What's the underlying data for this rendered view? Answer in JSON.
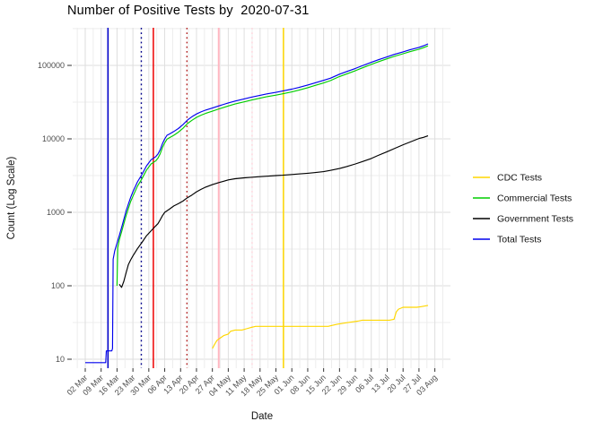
{
  "title": "Number of Positive Tests by  2020-07-31",
  "axes": {
    "x_label": "Date",
    "y_label": "Count (Log Scale)",
    "x_ticks": [
      "02 Mar",
      "09 Mar",
      "16 Mar",
      "23 Mar",
      "30 Mar",
      "06 Apr",
      "13 Apr",
      "20 Apr",
      "27 Apr",
      "04 May",
      "11 May",
      "18 May",
      "25 May",
      "01 Jun",
      "08 Jun",
      "15 Jun",
      "22 Jun",
      "29 Jun",
      "06 Jul",
      "13 Jul",
      "20 Jul",
      "27 Jul",
      "03 Aug"
    ],
    "y_ticks": [
      "10",
      "100",
      "1000",
      "10000",
      "100000"
    ]
  },
  "legend": {
    "items": [
      {
        "label": "CDC Tests",
        "color": "#FFD700"
      },
      {
        "label": "Commercial Tests",
        "color": "#00CD00"
      },
      {
        "label": "Government Tests",
        "color": "#000000"
      },
      {
        "label": "Total Tests",
        "color": "#0000EE"
      }
    ]
  },
  "chart_data": {
    "type": "line",
    "title": "Number of Positive Tests by  2020-07-31",
    "xlabel": "Date",
    "ylabel": "Count (Log Scale)",
    "y_scale": "log10",
    "ylim": [
      8,
      320000
    ],
    "grid": true,
    "legend_position": "right",
    "x_day0_date": "2020-03-02",
    "x_tick_days": [
      0,
      7,
      14,
      21,
      28,
      35,
      42,
      49,
      56,
      63,
      70,
      77,
      84,
      91,
      98,
      105,
      112,
      119,
      126,
      133,
      140,
      147,
      154
    ],
    "y_tick_values": [
      10,
      100,
      1000,
      10000,
      100000
    ],
    "series": [
      {
        "name": "Total Tests",
        "color": "#0000EE",
        "points": [
          [
            0,
            9
          ],
          [
            9,
            9
          ],
          [
            9.3,
            13
          ],
          [
            11.7,
            13
          ],
          [
            12,
            14
          ],
          [
            12.3,
            230
          ],
          [
            13,
            300
          ],
          [
            14,
            380
          ],
          [
            15,
            480
          ],
          [
            16,
            620
          ],
          [
            17,
            800
          ],
          [
            18,
            1040
          ],
          [
            19,
            1300
          ],
          [
            20,
            1600
          ],
          [
            21,
            1900
          ],
          [
            23,
            2600
          ],
          [
            25,
            3300
          ],
          [
            27,
            4300
          ],
          [
            29,
            5200
          ],
          [
            31,
            5700
          ],
          [
            32,
            6200
          ],
          [
            33,
            7100
          ],
          [
            34,
            8600
          ],
          [
            35,
            10000
          ],
          [
            36,
            11200
          ],
          [
            37,
            11600
          ],
          [
            39,
            12600
          ],
          [
            41,
            13800
          ],
          [
            43,
            15600
          ],
          [
            45,
            18000
          ],
          [
            47,
            20000
          ],
          [
            49,
            21800
          ],
          [
            51,
            23300
          ],
          [
            53,
            24600
          ],
          [
            56,
            26300
          ],
          [
            59,
            28200
          ],
          [
            61,
            29500
          ],
          [
            63,
            30800
          ],
          [
            66,
            32700
          ],
          [
            70,
            35000
          ],
          [
            73,
            36800
          ],
          [
            77,
            39200
          ],
          [
            80,
            41000
          ],
          [
            84,
            43000
          ],
          [
            87,
            44800
          ],
          [
            91,
            47500
          ],
          [
            94,
            50000
          ],
          [
            98,
            54000
          ],
          [
            101,
            57500
          ],
          [
            105,
            62500
          ],
          [
            108,
            67000
          ],
          [
            112,
            76000
          ],
          [
            115,
            82000
          ],
          [
            119,
            91000
          ],
          [
            122,
            99000
          ],
          [
            126,
            110000
          ],
          [
            129,
            119000
          ],
          [
            133,
            131000
          ],
          [
            136,
            141000
          ],
          [
            140,
            153000
          ],
          [
            143,
            163000
          ],
          [
            147,
            176000
          ],
          [
            149,
            185000
          ],
          [
            151,
            196000
          ]
        ]
      },
      {
        "name": "Commercial Tests",
        "color": "#00CD00",
        "points": [
          [
            14,
            100
          ],
          [
            14.3,
            330
          ],
          [
            15,
            420
          ],
          [
            16,
            540
          ],
          [
            17,
            700
          ],
          [
            18,
            900
          ],
          [
            19,
            1130
          ],
          [
            20,
            1400
          ],
          [
            21,
            1650
          ],
          [
            23,
            2270
          ],
          [
            25,
            2880
          ],
          [
            27,
            3760
          ],
          [
            29,
            4550
          ],
          [
            31,
            5000
          ],
          [
            32,
            5450
          ],
          [
            33,
            6250
          ],
          [
            34,
            7600
          ],
          [
            35,
            8850
          ],
          [
            36,
            9900
          ],
          [
            37,
            10300
          ],
          [
            39,
            11200
          ],
          [
            41,
            12300
          ],
          [
            43,
            13900
          ],
          [
            45,
            16100
          ],
          [
            47,
            17900
          ],
          [
            49,
            19600
          ],
          [
            51,
            21000
          ],
          [
            53,
            22200
          ],
          [
            56,
            23800
          ],
          [
            59,
            25600
          ],
          [
            61,
            26800
          ],
          [
            63,
            28000
          ],
          [
            66,
            29800
          ],
          [
            70,
            31900
          ],
          [
            73,
            33600
          ],
          [
            77,
            35800
          ],
          [
            80,
            37500
          ],
          [
            84,
            39400
          ],
          [
            87,
            41100
          ],
          [
            91,
            43600
          ],
          [
            94,
            46000
          ],
          [
            98,
            49700
          ],
          [
            101,
            53000
          ],
          [
            105,
            57700
          ],
          [
            108,
            62000
          ],
          [
            112,
            70500
          ],
          [
            115,
            76200
          ],
          [
            119,
            84800
          ],
          [
            122,
            92400
          ],
          [
            126,
            103000
          ],
          [
            129,
            111500
          ],
          [
            133,
            123000
          ],
          [
            136,
            132500
          ],
          [
            140,
            144000
          ],
          [
            143,
            153500
          ],
          [
            147,
            166000
          ],
          [
            149,
            174500
          ],
          [
            151,
            185000
          ]
        ]
      },
      {
        "name": "Government Tests",
        "color": "#000000",
        "points": [
          [
            15,
            105
          ],
          [
            16,
            95
          ],
          [
            17,
            115
          ],
          [
            18,
            150
          ],
          [
            19,
            195
          ],
          [
            20,
            225
          ],
          [
            21,
            255
          ],
          [
            23,
            320
          ],
          [
            25,
            390
          ],
          [
            27,
            480
          ],
          [
            29,
            560
          ],
          [
            31,
            650
          ],
          [
            32,
            700
          ],
          [
            33,
            790
          ],
          [
            34,
            900
          ],
          [
            35,
            1000
          ],
          [
            37,
            1100
          ],
          [
            39,
            1220
          ],
          [
            41,
            1310
          ],
          [
            43,
            1420
          ],
          [
            45,
            1580
          ],
          [
            47,
            1720
          ],
          [
            49,
            1900
          ],
          [
            51,
            2050
          ],
          [
            53,
            2200
          ],
          [
            56,
            2380
          ],
          [
            59,
            2550
          ],
          [
            61,
            2650
          ],
          [
            63,
            2760
          ],
          [
            66,
            2870
          ],
          [
            70,
            2950
          ],
          [
            73,
            3000
          ],
          [
            77,
            3060
          ],
          [
            80,
            3100
          ],
          [
            84,
            3160
          ],
          [
            87,
            3200
          ],
          [
            91,
            3270
          ],
          [
            94,
            3330
          ],
          [
            98,
            3400
          ],
          [
            101,
            3470
          ],
          [
            105,
            3580
          ],
          [
            108,
            3720
          ],
          [
            112,
            3950
          ],
          [
            115,
            4180
          ],
          [
            119,
            4550
          ],
          [
            122,
            4900
          ],
          [
            126,
            5400
          ],
          [
            129,
            5950
          ],
          [
            133,
            6700
          ],
          [
            136,
            7350
          ],
          [
            140,
            8300
          ],
          [
            143,
            9050
          ],
          [
            147,
            10100
          ],
          [
            149,
            10500
          ],
          [
            151,
            11000
          ]
        ]
      },
      {
        "name": "CDC Tests",
        "color": "#FFD700",
        "points": [
          [
            56,
            14
          ],
          [
            57,
            16
          ],
          [
            58,
            18
          ],
          [
            59,
            19
          ],
          [
            61,
            21
          ],
          [
            63,
            22
          ],
          [
            64,
            24
          ],
          [
            66,
            25
          ],
          [
            69,
            25
          ],
          [
            71,
            26
          ],
          [
            73,
            27
          ],
          [
            75,
            28
          ],
          [
            107,
            28
          ],
          [
            109,
            29
          ],
          [
            111,
            30
          ],
          [
            114,
            31
          ],
          [
            117,
            32
          ],
          [
            120,
            33
          ],
          [
            122,
            34
          ],
          [
            134,
            34
          ],
          [
            136,
            35
          ],
          [
            137,
            44
          ],
          [
            138,
            48
          ],
          [
            140,
            51
          ],
          [
            146,
            51
          ],
          [
            148,
            52
          ],
          [
            151,
            54
          ]
        ]
      }
    ],
    "vlines": [
      {
        "date": "2020-03-12",
        "day": 10,
        "color": "#0000CC",
        "style": "solid"
      },
      {
        "date": "2020-03-27",
        "day": 24.7,
        "color": "#00008B",
        "style": "dotted"
      },
      {
        "date": "2020-04-01",
        "day": 30,
        "color": "#EE0000",
        "style": "solid"
      },
      {
        "date": "2020-04-16",
        "day": 44.8,
        "color": "#B22222",
        "style": "dotted"
      },
      {
        "date": "2020-04-30",
        "day": 58.8,
        "color": "#FFB6C1",
        "style": "solid"
      },
      {
        "date": "2020-05-15",
        "day": 73.5,
        "color": "#FFD4DC",
        "style": "dotted"
      },
      {
        "date": "2020-05-28",
        "day": 87.3,
        "color": "#FFD700",
        "style": "solid"
      }
    ]
  }
}
